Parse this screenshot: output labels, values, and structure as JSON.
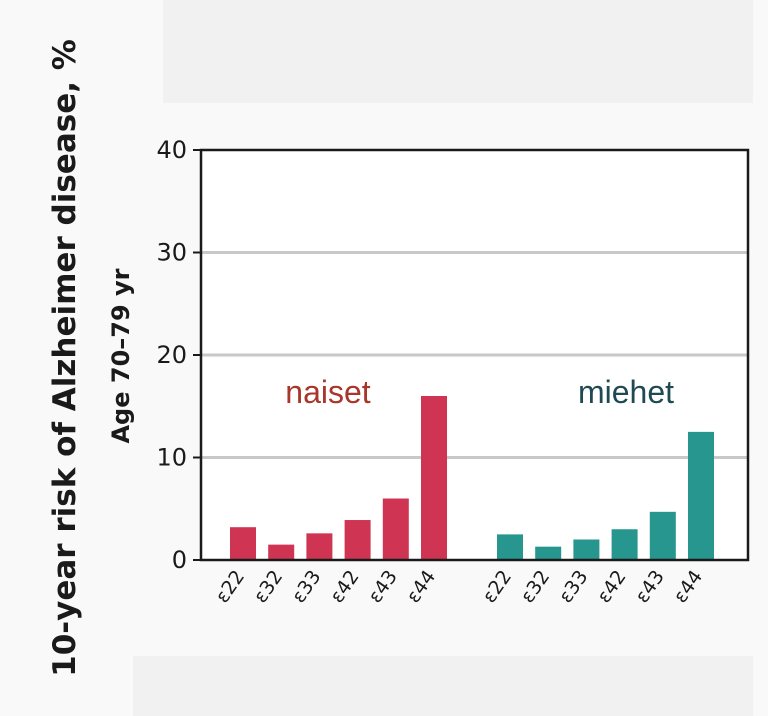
{
  "chart_data": {
    "type": "bar",
    "ylabel": "10-year risk of Alzheimer disease, %",
    "subtitle": "Age 70–79 yr",
    "ylim": [
      0,
      40
    ],
    "yticks": [
      0,
      10,
      20,
      30,
      40
    ],
    "grid": true,
    "groups": [
      {
        "name": "naiset",
        "color": "#cf3552",
        "label_color": "#a8362a",
        "categories": [
          "ε22",
          "ε32",
          "ε33",
          "ε42",
          "ε43",
          "ε44"
        ],
        "values": [
          3.2,
          1.5,
          2.6,
          3.9,
          6.0,
          16.0
        ]
      },
      {
        "name": "miehet",
        "color": "#26968f",
        "label_color": "#1e4a54",
        "categories": [
          "ε22",
          "ε32",
          "ε33",
          "ε42",
          "ε43",
          "ε44"
        ],
        "values": [
          2.5,
          1.3,
          2.0,
          3.0,
          4.7,
          12.5
        ]
      }
    ]
  }
}
